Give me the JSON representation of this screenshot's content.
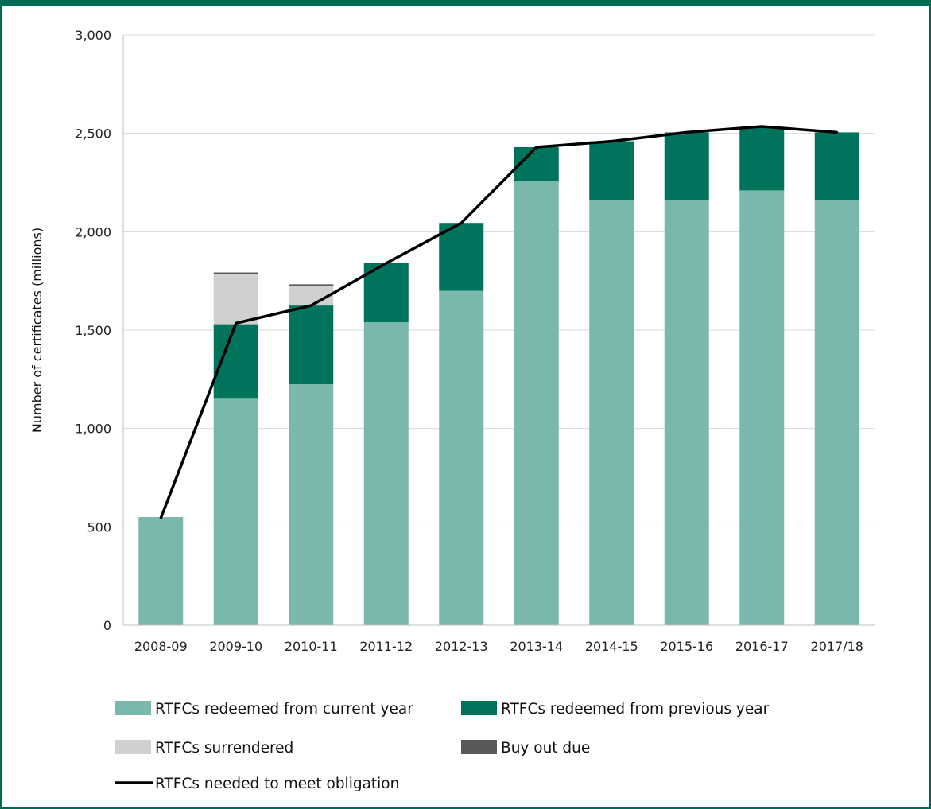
{
  "chart_data": {
    "type": "bar",
    "stacked": true,
    "title": "",
    "xlabel": "",
    "ylabel": "Number of certificates (millions)",
    "ylim": [
      0,
      3000
    ],
    "yticks": [
      0,
      500,
      1000,
      1500,
      2000,
      2500,
      3000
    ],
    "ytick_labels": [
      "0",
      "500",
      "1,000",
      "1,500",
      "2,000",
      "2,500",
      "3,000"
    ],
    "grid": true,
    "legend_position": "bottom",
    "categories": [
      "2008-09",
      "2009-10",
      "2010-11",
      "2011-12",
      "2012-13",
      "2013-14",
      "2014-15",
      "2015-16",
      "2016-17",
      "2017/18"
    ],
    "series": [
      {
        "name": "RTFCs redeemed from current year",
        "kind": "bar",
        "color": "#7AB8AD",
        "values": [
          550,
          1155,
          1225,
          1540,
          1700,
          2260,
          2160,
          2160,
          2210,
          2160
        ]
      },
      {
        "name": "RTFCs redeemed from previous year",
        "kind": "bar",
        "color": "#00735C",
        "values": [
          0,
          375,
          400,
          300,
          345,
          170,
          300,
          345,
          320,
          345
        ]
      },
      {
        "name": "RTFCs surrendered",
        "kind": "bar",
        "color": "#D0D0D0",
        "values": [
          0,
          255,
          100,
          0,
          0,
          0,
          0,
          0,
          0,
          0
        ]
      },
      {
        "name": "Buy out due",
        "kind": "bar",
        "color": "#595959",
        "values": [
          0,
          8,
          8,
          0,
          0,
          0,
          0,
          0,
          0,
          0
        ]
      },
      {
        "name": "RTFCs needed to meet obligation",
        "kind": "line",
        "color": "#000000",
        "values": [
          545,
          1535,
          1625,
          1840,
          2045,
          2430,
          2460,
          2505,
          2535,
          2505
        ]
      }
    ]
  }
}
